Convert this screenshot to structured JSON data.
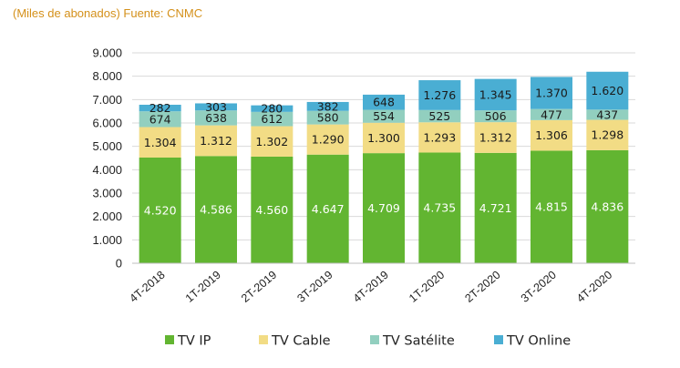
{
  "subtitle": "(Miles de abonados) Fuente: CNMC",
  "chart_data": {
    "type": "bar",
    "stacked": true,
    "categories": [
      "4T-2018",
      "1T-2019",
      "2T-2019",
      "3T-2019",
      "4T-2019",
      "1T-2020",
      "2T-2020",
      "3T-2020",
      "4T-2020"
    ],
    "series": [
      {
        "name": "TV IP",
        "color": "#62b531",
        "values": [
          4520,
          4586,
          4560,
          4647,
          4709,
          4735,
          4721,
          4815,
          4836
        ],
        "labels": [
          "4.520",
          "4.586",
          "4.560",
          "4.647",
          "4.709",
          "4.735",
          "4.721",
          "4.815",
          "4.836"
        ],
        "label_color": "#ffffff"
      },
      {
        "name": "TV Cable",
        "color": "#f2dc85",
        "values": [
          1304,
          1312,
          1302,
          1290,
          1300,
          1293,
          1312,
          1306,
          1298
        ],
        "labels": [
          "1.304",
          "1.312",
          "1.302",
          "1.290",
          "1.300",
          "1.293",
          "1.312",
          "1.306",
          "1.298"
        ],
        "label_color": "#1a1a1a"
      },
      {
        "name": "TV Satélite",
        "color": "#92cfbf",
        "values": [
          674,
          638,
          612,
          580,
          554,
          525,
          506,
          477,
          437
        ],
        "labels": [
          "674",
          "638",
          "612",
          "580",
          "554",
          "525",
          "506",
          "477",
          "437"
        ],
        "label_color": "#1a1a1a"
      },
      {
        "name": "TV Online",
        "color": "#4aaed3",
        "values": [
          282,
          303,
          280,
          382,
          648,
          1276,
          1345,
          1370,
          1620
        ],
        "labels": [
          "282",
          "303",
          "280",
          "382",
          "648",
          "1.276",
          "1.345",
          "1.370",
          "1.620"
        ],
        "label_color": "#1a1a1a"
      }
    ],
    "ylim": [
      0,
      9000
    ],
    "yticks": [
      0,
      1000,
      2000,
      3000,
      4000,
      5000,
      6000,
      7000,
      8000,
      9000
    ],
    "ytick_labels": [
      "0",
      "1.000",
      "2.000",
      "3.000",
      "4.000",
      "5.000",
      "6.000",
      "7.000",
      "8.000",
      "9.000"
    ],
    "grid": true,
    "legend_position": "bottom",
    "xlabel": "",
    "ylabel": ""
  }
}
